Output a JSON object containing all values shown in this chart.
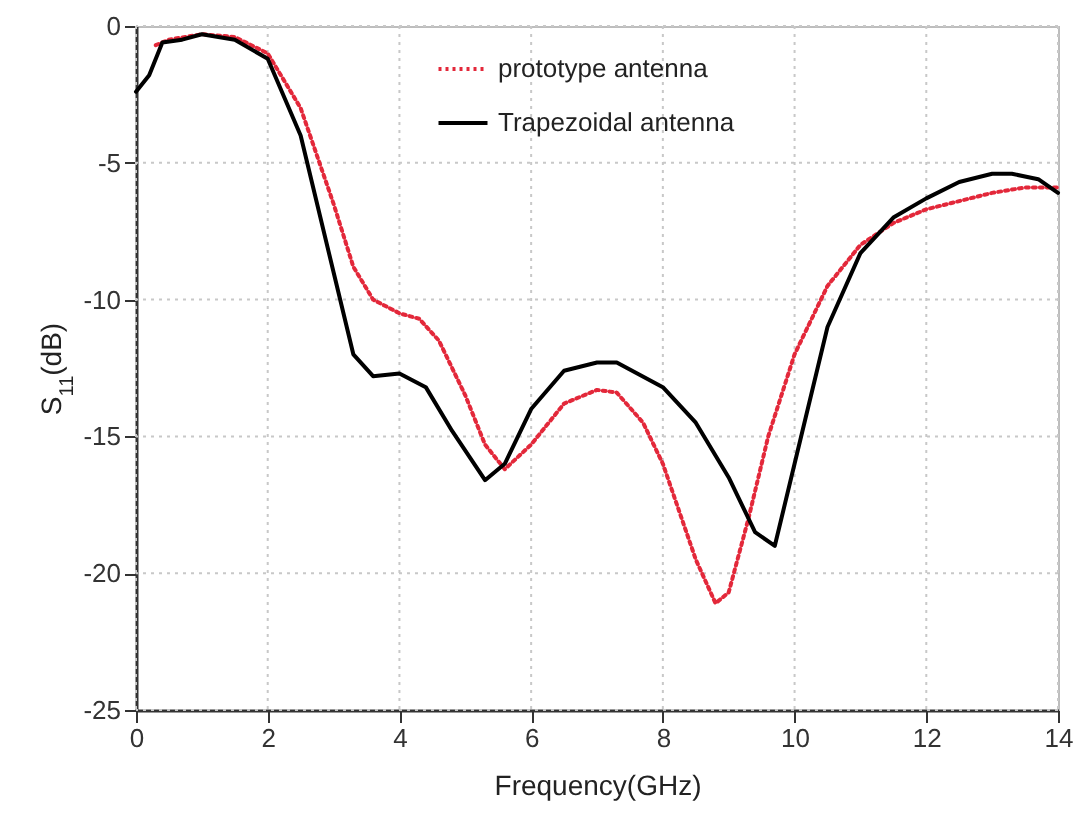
{
  "chart_data": {
    "type": "line",
    "xlabel": "Frequency(GHz)",
    "ylabel": "S$_{11}$(dB)",
    "xlim": [
      0,
      14
    ],
    "xticks": [
      0,
      2,
      4,
      6,
      8,
      10,
      12,
      14
    ],
    "ylim": [
      -25,
      0
    ],
    "yticks": [
      -25,
      -20,
      -15,
      -10,
      -5,
      0
    ],
    "grid": true,
    "legend": "top",
    "marker": "none",
    "series": [
      {
        "name": "prototype antenna",
        "color": "#e3283a",
        "line_style": "dotted",
        "x": [
          0.3,
          0.5,
          1,
          1.5,
          2,
          2.5,
          3,
          3.3,
          3.6,
          4,
          4.3,
          4.6,
          5,
          5.3,
          5.6,
          6,
          6.5,
          7,
          7.3,
          7.7,
          8,
          8.5,
          8.8,
          9,
          9.3,
          9.6,
          10,
          10.5,
          11,
          11.5,
          12,
          12.5,
          13,
          13.5,
          14
        ],
        "values": [
          -0.7,
          -0.5,
          -0.3,
          -0.4,
          -1,
          -3,
          -6.5,
          -8.8,
          -10,
          -10.5,
          -10.7,
          -11.5,
          -13.5,
          -15.3,
          -16.2,
          -15.3,
          -13.8,
          -13.3,
          -13.4,
          -14.5,
          -16,
          -19.5,
          -21.1,
          -20.7,
          -18,
          -15,
          -12,
          -9.5,
          -8,
          -7.2,
          -6.7,
          -6.4,
          -6.1,
          -5.9,
          -5.9
        ]
      },
      {
        "name": "Trapezoidal antenna",
        "color": "#000000",
        "line_style": "solid",
        "x": [
          0,
          0.2,
          0.4,
          0.7,
          1,
          1.5,
          2,
          2.5,
          3,
          3.3,
          3.6,
          4,
          4.4,
          4.8,
          5.3,
          5.6,
          6,
          6.5,
          7,
          7.3,
          8,
          8.5,
          9,
          9.4,
          9.7,
          10,
          10.5,
          11,
          11.5,
          12,
          12.5,
          13,
          13.3,
          13.7,
          14
        ],
        "values": [
          -2.4,
          -1.8,
          -0.6,
          -0.5,
          -0.3,
          -0.5,
          -1.2,
          -4,
          -9,
          -12,
          -12.8,
          -12.7,
          -13.2,
          -14.8,
          -16.6,
          -16,
          -14,
          -12.6,
          -12.3,
          -12.3,
          -13.2,
          -14.5,
          -16.5,
          -18.5,
          -19,
          -16,
          -11,
          -8.3,
          -7,
          -6.3,
          -5.7,
          -5.4,
          -5.4,
          -5.6,
          -6.1
        ]
      }
    ]
  }
}
